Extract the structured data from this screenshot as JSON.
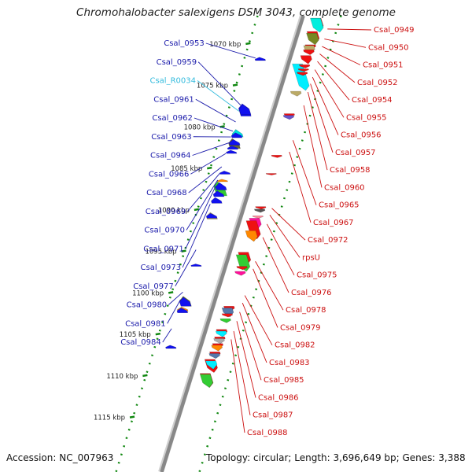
{
  "title": "Chromohalobacter salexigens DSM 3043, complete genome",
  "footer": {
    "accession": "Accession: NC_007963",
    "topology": "Topology: circular; Length: 3,696,649 bp; Genes: 3,388"
  },
  "colors": {
    "backbone": "#888888",
    "left_label": "#1a1aaa",
    "left_rna_label": "#33bbdd",
    "right_label": "#cc1111",
    "tick_mark": "#118811"
  },
  "ticks": [
    {
      "label": "1070 kbp",
      "kbp": 1070
    },
    {
      "label": "1075 kbp",
      "kbp": 1075
    },
    {
      "label": "1080 kbp",
      "kbp": 1080
    },
    {
      "label": "1085 kbp",
      "kbp": 1085
    },
    {
      "label": "1090 kbp",
      "kbp": 1090
    },
    {
      "label": "1095 kbp",
      "kbp": 1095
    },
    {
      "label": "1100 kbp",
      "kbp": 1100
    },
    {
      "label": "1105 kbp",
      "kbp": 1105
    },
    {
      "label": "1110 kbp",
      "kbp": 1110
    },
    {
      "label": "1115 kbp",
      "kbp": 1115
    }
  ],
  "left_labels": [
    {
      "text": "Csal_0953",
      "kbp": 1071.7,
      "kind": "cds"
    },
    {
      "text": "Csal_0959",
      "kbp": 1077.4,
      "kind": "cds"
    },
    {
      "text": "Csal_R0034",
      "kbp": 1078.1,
      "kind": "rna"
    },
    {
      "text": "Csal_0961",
      "kbp": 1079.4,
      "kind": "cds"
    },
    {
      "text": "Csal_0962",
      "kbp": 1080.5,
      "kind": "cds"
    },
    {
      "text": "Csal_0963",
      "kbp": 1081.2,
      "kind": "cds"
    },
    {
      "text": "Csal_0964",
      "kbp": 1081.9,
      "kind": "cds"
    },
    {
      "text": "Csal_0966",
      "kbp": 1083.2,
      "kind": "cds"
    },
    {
      "text": "Csal_0968",
      "kbp": 1084.8,
      "kind": "cds"
    },
    {
      "text": "Csal_0969",
      "kbp": 1085.6,
      "kind": "cds"
    },
    {
      "text": "Csal_0970",
      "kbp": 1086.4,
      "kind": "cds"
    },
    {
      "text": "Csal_0971",
      "kbp": 1087.1,
      "kind": "cds"
    },
    {
      "text": "Csal_0973",
      "kbp": 1089.3,
      "kind": "cds"
    },
    {
      "text": "Csal_0977",
      "kbp": 1094.8,
      "kind": "cds"
    },
    {
      "text": "Csal_0980",
      "kbp": 1099.9,
      "kind": "cds"
    },
    {
      "text": "Csal_0981",
      "kbp": 1100.8,
      "kind": "cds"
    },
    {
      "text": "Csal_0984",
      "kbp": 1104.3,
      "kind": "cds"
    }
  ],
  "right_labels": [
    {
      "text": "Csal_0949",
      "kbp": 1068.2
    },
    {
      "text": "Csal_0950",
      "kbp": 1069.4
    },
    {
      "text": "Csal_0951",
      "kbp": 1070.3
    },
    {
      "text": "Csal_0952",
      "kbp": 1071.2
    },
    {
      "text": "Csal_0954",
      "kbp": 1072.1
    },
    {
      "text": "Csal_0955",
      "kbp": 1073.1
    },
    {
      "text": "Csal_0956",
      "kbp": 1074.0
    },
    {
      "text": "Csal_0957",
      "kbp": 1074.8
    },
    {
      "text": "Csal_0958",
      "kbp": 1075.8
    },
    {
      "text": "Csal_0960",
      "kbp": 1077.4
    },
    {
      "text": "Csal_0965",
      "kbp": 1081.6
    },
    {
      "text": "Csal_0967",
      "kbp": 1083.0
    },
    {
      "text": "Csal_0972",
      "kbp": 1089.8
    },
    {
      "text": "rpsU",
      "kbp": 1090.6
    },
    {
      "text": "Csal_0975",
      "kbp": 1091.7
    },
    {
      "text": "Csal_0976",
      "kbp": 1093.3
    },
    {
      "text": "Csal_0978",
      "kbp": 1096.2
    },
    {
      "text": "Csal_0979",
      "kbp": 1097.1
    },
    {
      "text": "Csal_0982",
      "kbp": 1100.3
    },
    {
      "text": "Csal_0983",
      "kbp": 1101.2
    },
    {
      "text": "Csal_0985",
      "kbp": 1102.3
    },
    {
      "text": "Csal_0986",
      "kbp": 1103.4
    },
    {
      "text": "Csal_0987",
      "kbp": 1104.6
    },
    {
      "text": "Csal_0988",
      "kbp": 1105.6
    }
  ],
  "reverse_strand_genes": [
    {
      "start": 1066.9,
      "end": 1068.4,
      "color": "#ee1111"
    },
    {
      "start": 1066.9,
      "end": 1068.6,
      "color": "#00eedd"
    },
    {
      "start": 1068.5,
      "end": 1069.9,
      "color": "#ee1111"
    },
    {
      "start": 1068.7,
      "end": 1070.1,
      "color": "#778822"
    },
    {
      "start": 1070.1,
      "end": 1070.6,
      "color": "#ee1111"
    },
    {
      "start": 1070.2,
      "end": 1071.2,
      "color": "#bbaa66"
    },
    {
      "start": 1070.7,
      "end": 1071.3,
      "color": "#ee1111"
    },
    {
      "start": 1071.4,
      "end": 1072.4,
      "color": "#ee1111"
    },
    {
      "start": 1072.4,
      "end": 1075.6,
      "color": "#00eeff"
    },
    {
      "start": 1072.5,
      "end": 1072.9,
      "color": "#ee1111"
    },
    {
      "start": 1073.0,
      "end": 1073.3,
      "color": "#ee1111"
    },
    {
      "start": 1073.4,
      "end": 1073.8,
      "color": "#ee1111"
    },
    {
      "start": 1075.7,
      "end": 1076.3,
      "color": "#bbaa66"
    },
    {
      "start": 1078.4,
      "end": 1078.8,
      "color": "#ee1111"
    },
    {
      "start": 1078.6,
      "end": 1079.1,
      "color": "#6655cc"
    },
    {
      "start": 1083.4,
      "end": 1083.7,
      "color": "#ee1111"
    },
    {
      "start": 1085.6,
      "end": 1085.8,
      "color": "#ee1111"
    },
    {
      "start": 1089.6,
      "end": 1089.9,
      "color": "#ee1111"
    },
    {
      "start": 1089.9,
      "end": 1090.3,
      "color": "#555555"
    },
    {
      "start": 1090.7,
      "end": 1091.0,
      "color": "#ff8899"
    },
    {
      "start": 1091.0,
      "end": 1092.3,
      "color": "#ff1199"
    },
    {
      "start": 1091.3,
      "end": 1093.5,
      "color": "#ee1111"
    },
    {
      "start": 1092.5,
      "end": 1093.8,
      "color": "#ff8800"
    },
    {
      "start": 1095.1,
      "end": 1096.6,
      "color": "#ee1111"
    },
    {
      "start": 1095.4,
      "end": 1097.4,
      "color": "#33cc33"
    },
    {
      "start": 1096.8,
      "end": 1097.2,
      "color": "#ee1111"
    },
    {
      "start": 1097.4,
      "end": 1097.9,
      "color": "#ff1199"
    },
    {
      "start": 1101.6,
      "end": 1102.2,
      "color": "#ee1111"
    },
    {
      "start": 1101.8,
      "end": 1102.9,
      "color": "#5577aa"
    },
    {
      "start": 1102.5,
      "end": 1102.9,
      "color": "#ee1111"
    },
    {
      "start": 1103.1,
      "end": 1103.6,
      "color": "#33cc33"
    },
    {
      "start": 1104.4,
      "end": 1105.1,
      "color": "#ee1111"
    },
    {
      "start": 1104.6,
      "end": 1105.3,
      "color": "#00eeff"
    },
    {
      "start": 1105.3,
      "end": 1105.8,
      "color": "#ee1111"
    },
    {
      "start": 1105.5,
      "end": 1106.1,
      "color": "#aaaaaa"
    },
    {
      "start": 1106.1,
      "end": 1106.6,
      "color": "#ee1111"
    },
    {
      "start": 1106.3,
      "end": 1107.0,
      "color": "#ff8800"
    },
    {
      "start": 1107.1,
      "end": 1107.7,
      "color": "#ee1111"
    },
    {
      "start": 1107.3,
      "end": 1107.9,
      "color": "#5577aa"
    },
    {
      "start": 1108.0,
      "end": 1109.6,
      "color": "#ee1111"
    },
    {
      "start": 1108.2,
      "end": 1109.2,
      "color": "#00eeff"
    },
    {
      "start": 1109.7,
      "end": 1111.4,
      "color": "#ee1111"
    },
    {
      "start": 1109.8,
      "end": 1111.4,
      "color": "#33cc33"
    }
  ],
  "forward_strand_genes": [
    {
      "start": 1071.6,
      "end": 1072.0,
      "color": "#1111ee"
    },
    {
      "start": 1077.2,
      "end": 1078.7,
      "color": "#1111ee"
    },
    {
      "start": 1077.3,
      "end": 1078.5,
      "color": "#1111ee"
    },
    {
      "start": 1080.3,
      "end": 1081.2,
      "color": "#00dddd"
    },
    {
      "start": 1080.7,
      "end": 1081.3,
      "color": "#1111ee"
    },
    {
      "start": 1081.4,
      "end": 1082.6,
      "color": "#666633"
    },
    {
      "start": 1081.5,
      "end": 1082.2,
      "color": "#1111ee"
    },
    {
      "start": 1082.3,
      "end": 1082.7,
      "color": "#1111ee"
    },
    {
      "start": 1082.8,
      "end": 1083.2,
      "color": "#1111ee"
    },
    {
      "start": 1085.3,
      "end": 1085.7,
      "color": "#1111ee"
    },
    {
      "start": 1086.3,
      "end": 1086.6,
      "color": "#ff8800"
    },
    {
      "start": 1086.6,
      "end": 1088.3,
      "color": "#33cc33"
    },
    {
      "start": 1086.7,
      "end": 1087.6,
      "color": "#1111ee"
    },
    {
      "start": 1087.7,
      "end": 1088.4,
      "color": "#1111ee"
    },
    {
      "start": 1088.5,
      "end": 1089.2,
      "color": "#1111ee"
    },
    {
      "start": 1090.3,
      "end": 1091.1,
      "color": "#bbaa66"
    },
    {
      "start": 1090.4,
      "end": 1091.0,
      "color": "#1111ee"
    },
    {
      "start": 1096.5,
      "end": 1096.8,
      "color": "#1111ee"
    },
    {
      "start": 1100.4,
      "end": 1101.6,
      "color": "#778822"
    },
    {
      "start": 1100.5,
      "end": 1101.6,
      "color": "#1111ee"
    },
    {
      "start": 1101.7,
      "end": 1102.2,
      "color": "#ff8800"
    },
    {
      "start": 1101.8,
      "end": 1102.4,
      "color": "#1111ee"
    },
    {
      "start": 1106.3,
      "end": 1106.7,
      "color": "#1111ee"
    }
  ]
}
